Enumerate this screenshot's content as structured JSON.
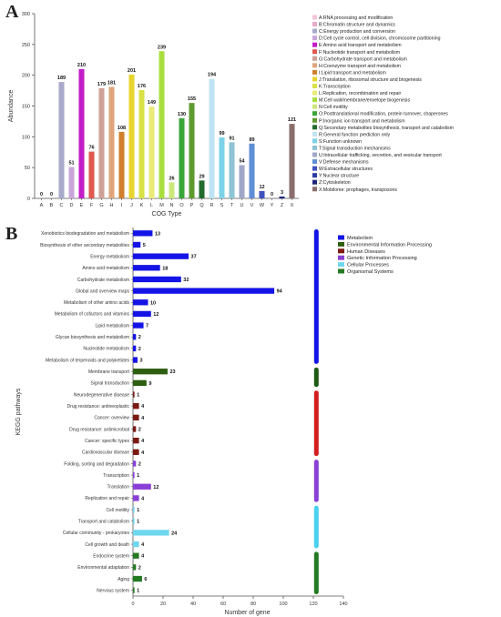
{
  "panel_labels": {
    "a": "A",
    "b": "B"
  },
  "chart_data": [
    {
      "type": "bar",
      "title": "",
      "xlabel": "COG Type",
      "ylabel": "Abundance",
      "ylim": [
        0,
        300
      ],
      "yticks": [
        0,
        50,
        100,
        150,
        200,
        250,
        300
      ],
      "grid": false,
      "legend_position": "right",
      "categories": [
        "A",
        "B",
        "C",
        "D",
        "E",
        "F",
        "G",
        "H",
        "I",
        "J",
        "K",
        "L",
        "M",
        "N",
        "O",
        "P",
        "Q",
        "R",
        "S",
        "T",
        "U",
        "V",
        "W",
        "Y",
        "Z",
        "X"
      ],
      "values": [
        0,
        0,
        189,
        51,
        210,
        76,
        179,
        181,
        108,
        201,
        176,
        149,
        239,
        26,
        130,
        155,
        29,
        194,
        99,
        91,
        54,
        89,
        12,
        0,
        3,
        121
      ],
      "colors": [
        "#f3c6d8",
        "#e7a9c9",
        "#a9aac9",
        "#c8a6d8",
        "#c21ec9",
        "#e0584f",
        "#cfa197",
        "#dfa47c",
        "#d07f2d",
        "#e8d431",
        "#d8e246",
        "#eaea78",
        "#a8df3e",
        "#cce87a",
        "#3aa63a",
        "#5f9a2f",
        "#226b2e",
        "#bfe3f3",
        "#7cd3e8",
        "#8ec3d4",
        "#a1a7c8",
        "#5f8fd5",
        "#3f52c0",
        "#2b3ea3",
        "#1e277c",
        "#8a6d6d"
      ],
      "legend": [
        "A:RNA processing and modification",
        "B:Chromatin structure and dynamics",
        "C:Energy production and conversion",
        "D:Cell cycle control, cell division, chromosome partitioning",
        "E:Amino acid transport and metabolism",
        "F:Nucleotide transport and metabolism",
        "G:Carbohydrate transport and metabolism",
        "H:Coenzyme transport and metabolism",
        "I:Lipid transport and metabolism",
        "J:Translation, ribosomal structure and biogenesis",
        "K:Transcription",
        "L:Replication, recombination and repair",
        "M:Cell wall/membrane/envelope biogenesis",
        "N:Cell motility",
        "O:Posttranslational modification, protein turnover, chaperones",
        "P:Inorganic ion transport and metabolism",
        "Q:Secondary metabolites biosynthesis, transport and catabolism",
        "R:General function prediction only",
        "S:Function unknown",
        "T:Signal transduction mechanisms",
        "U:Intracellular trafficking, secretion, and vesicular transport",
        "V:Defense mechanisms",
        "W:Extracellular structures",
        "Y:Nuclear structure",
        "Z:Cytoskeleton",
        "X:Mobilome: prophages, transposons"
      ]
    },
    {
      "type": "bar",
      "orientation": "horizontal",
      "title": "",
      "xlabel": "Number of gene",
      "ylabel": "KEGG pathways",
      "xlim": [
        0,
        140
      ],
      "xticks": [
        0,
        20,
        40,
        60,
        80,
        100,
        120,
        140
      ],
      "legend_position": "top-right",
      "categories": [
        "Xenobiotics biodegradation and metabolism",
        "Biosynthesis of other secondary metabolites",
        "Energy metabolism",
        "Amino acid metabolism",
        "Carbohydrate metabolism",
        "Global and overview maps",
        "Metabolism of other amino acids",
        "Metabolism of cofactors and vitamins",
        "Lipid metabolism",
        "Glycan biosynthesis and metabolism",
        "Nucleotide metabolism",
        "Metabolism of terpenoids and polyketides",
        "Membrane transport",
        "Signal transduction",
        "Neurodegenerative disease",
        "Drug resistance: antineoplastic",
        "Cancer: overview",
        "Drug resistance: antimicrobial",
        "Cancer: specific types",
        "Cardiovascular disease",
        "Folding, sorting and degradation",
        "Transcription",
        "Translation",
        "Replication and repair",
        "Cell motility",
        "Transport and catabolism",
        "Cellular community - prokaryotes",
        "Cell growth and death",
        "Endocrine system",
        "Environmental adaptation",
        "Aging",
        "Nervous system"
      ],
      "values": [
        13,
        5,
        37,
        18,
        32,
        94,
        10,
        12,
        7,
        2,
        2,
        3,
        23,
        9,
        1,
        4,
        4,
        2,
        4,
        4,
        2,
        1,
        12,
        4,
        1,
        1,
        24,
        4,
        4,
        2,
        6,
        1
      ],
      "groups": [
        "Metabolism",
        "Metabolism",
        "Metabolism",
        "Metabolism",
        "Metabolism",
        "Metabolism",
        "Metabolism",
        "Metabolism",
        "Metabolism",
        "Metabolism",
        "Metabolism",
        "Metabolism",
        "Environmental Information Processing",
        "Environmental Information Processing",
        "Human Diseases",
        "Human Diseases",
        "Human Diseases",
        "Human Diseases",
        "Human Diseases",
        "Human Diseases",
        "Genetic Information Processing",
        "Genetic Information Processing",
        "Genetic Information Processing",
        "Genetic Information Processing",
        "Cellular Processes",
        "Cellular Processes",
        "Cellular Processes",
        "Cellular Processes",
        "Organismal Systems",
        "Organismal Systems",
        "Organismal Systems",
        "Organismal Systems"
      ],
      "legend": [
        {
          "name": "Metabolism",
          "color": "#1414e6"
        },
        {
          "name": "Environmental Information Processing",
          "color": "#2e5e12"
        },
        {
          "name": "Human Diseases",
          "color": "#7a1a12"
        },
        {
          "name": "Genetic Information Processing",
          "color": "#8a3fd6"
        },
        {
          "name": "Cellular Processes",
          "color": "#6fd7ee"
        },
        {
          "name": "Organismal Systems",
          "color": "#237a23"
        }
      ],
      "side_bar_colors": {
        "Metabolism": "#1414e6",
        "Environmental Information Processing": "#1e5a14",
        "Human Diseases": "#d21e1e",
        "Genetic Information Processing": "#8a3fd6",
        "Cellular Processes": "#49d1f0",
        "Organismal Systems": "#237a23"
      }
    }
  ]
}
